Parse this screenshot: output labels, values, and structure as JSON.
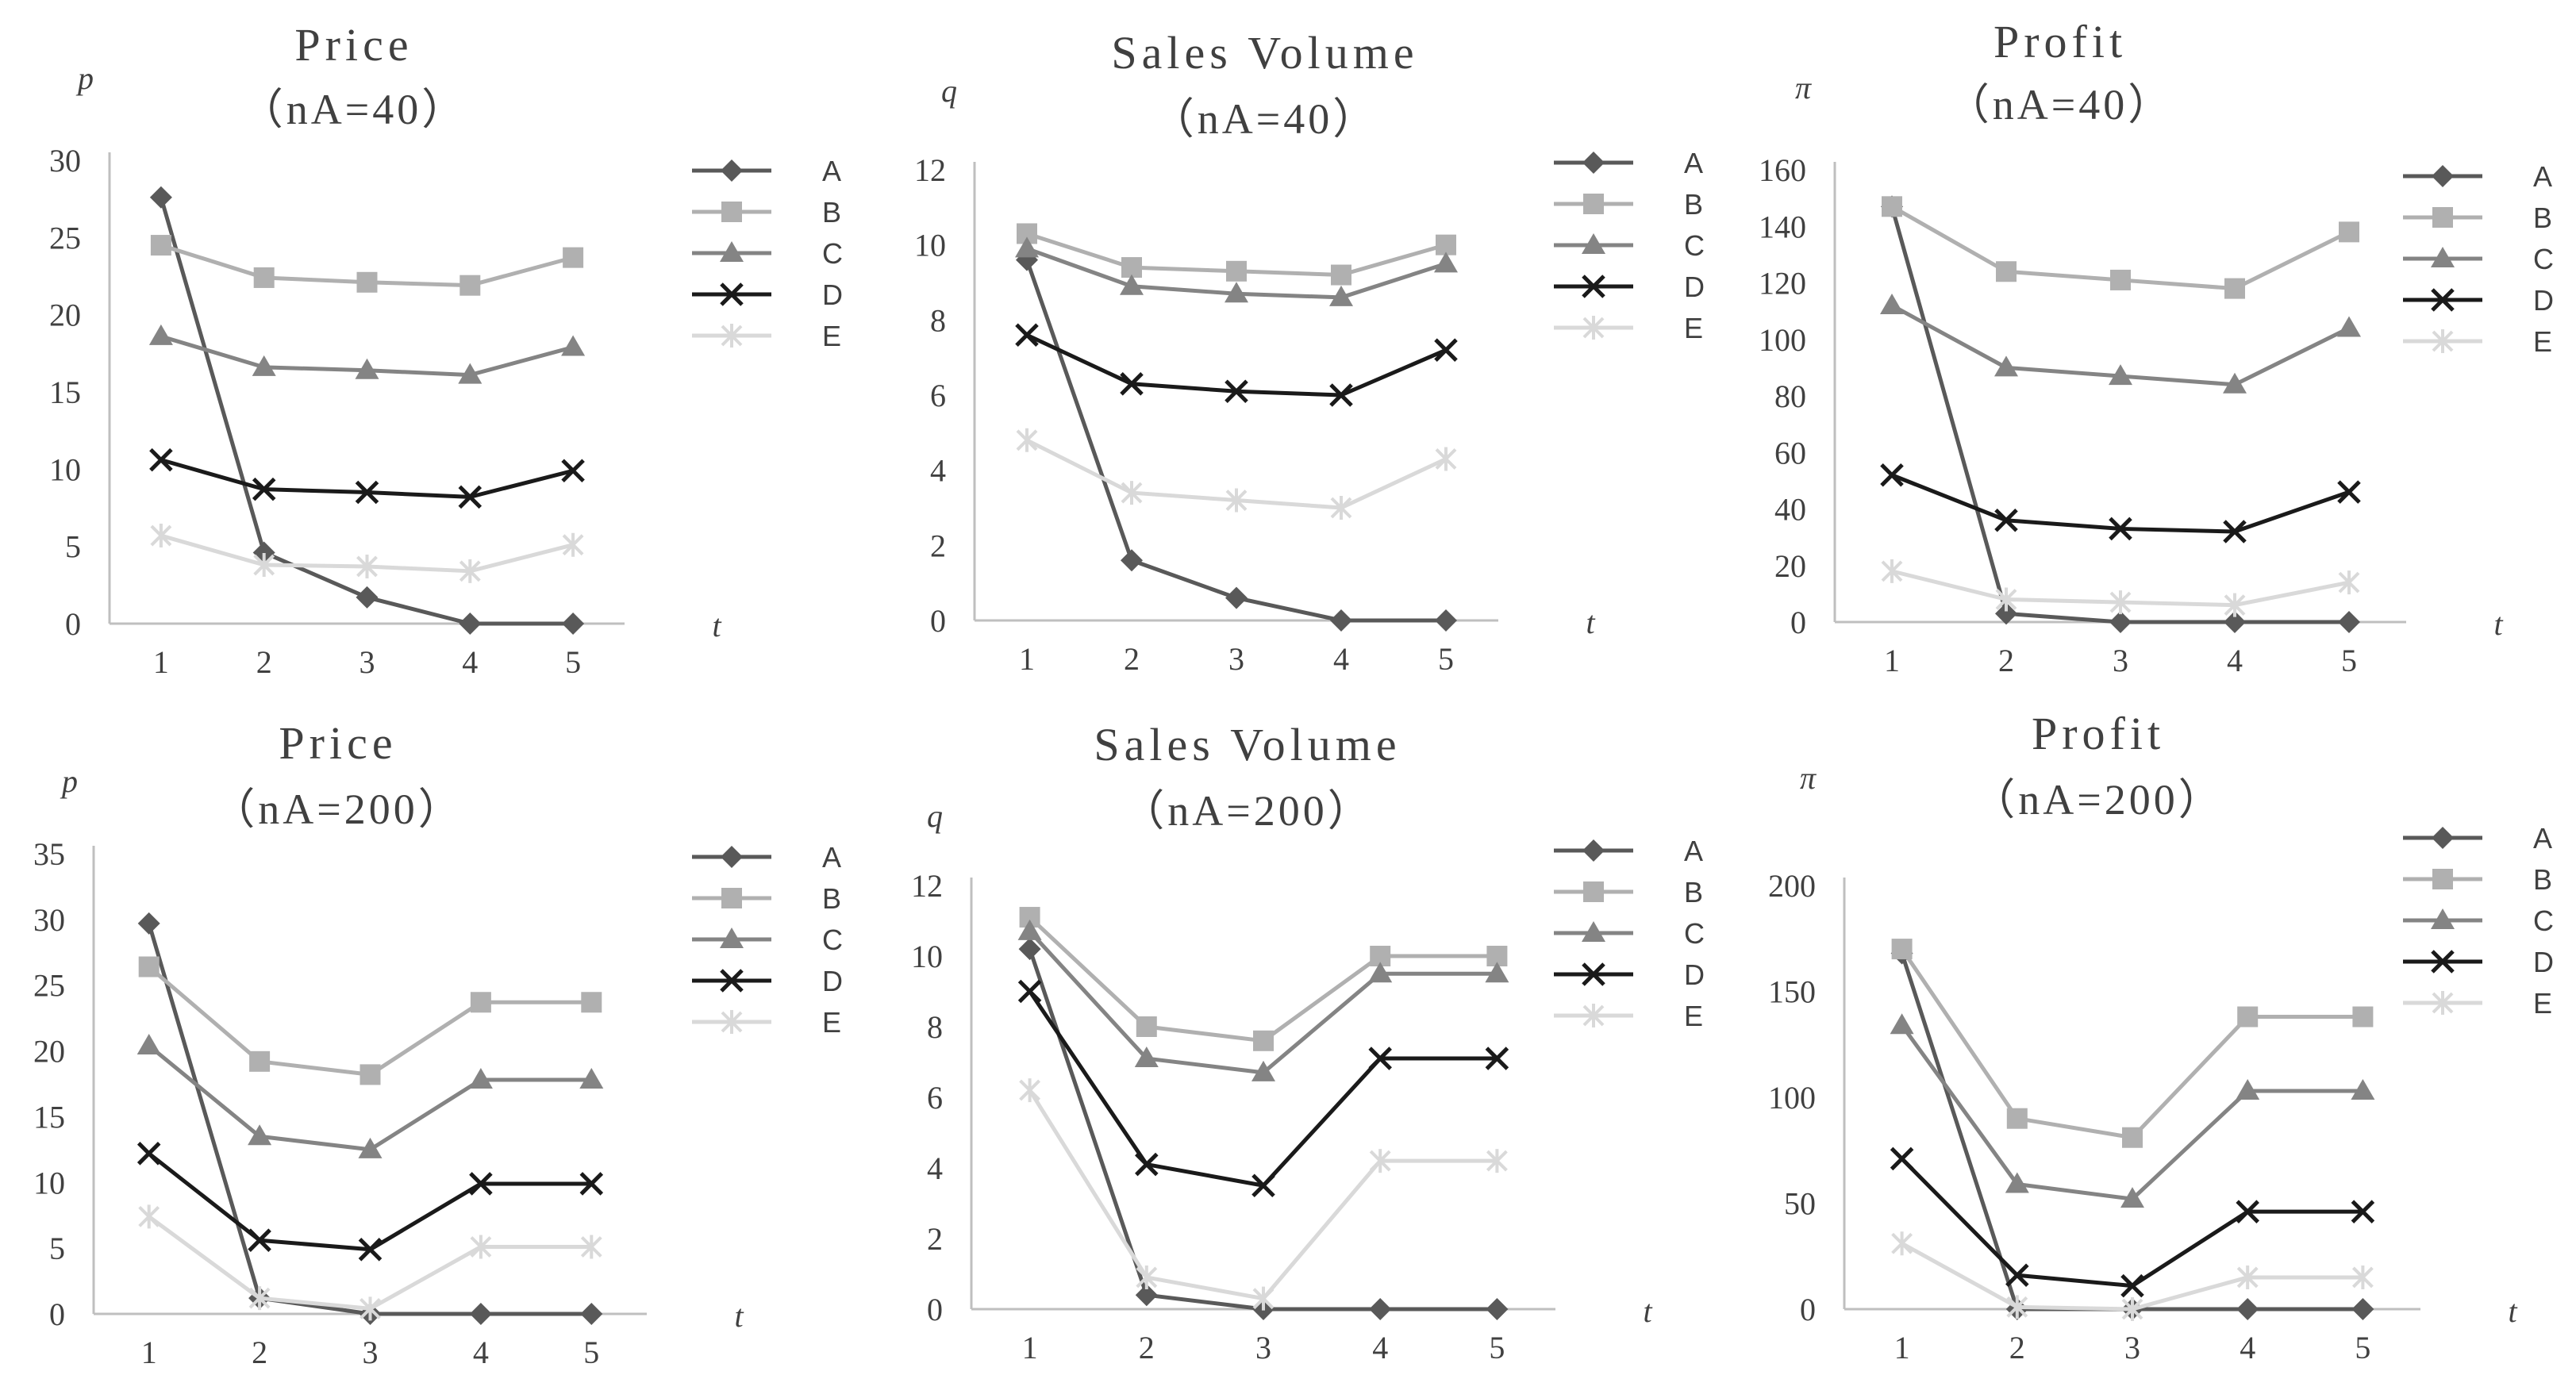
{
  "colors": {
    "A": "#595959",
    "B": "#b0b0b0",
    "C": "#848484",
    "D": "#1a1a1a",
    "E": "#d9d9d9",
    "axis": "#bfbfbf",
    "text": "#404040"
  },
  "chart_data": [
    {
      "type": "line",
      "title": "Price",
      "subtitle": "（nA=40）",
      "ylabel": "p",
      "xlabel": "t",
      "categories": [
        1,
        2,
        3,
        4,
        5
      ],
      "yticks": [
        0,
        5,
        10,
        15,
        20,
        25,
        30
      ],
      "ylim": [
        0,
        30
      ],
      "grid": false,
      "legend": "right",
      "series": [
        {
          "name": "A",
          "marker": "diamond",
          "values": [
            27.6,
            4.6,
            1.7,
            0,
            0
          ]
        },
        {
          "name": "B",
          "marker": "square",
          "values": [
            24.5,
            22.4,
            22.1,
            21.9,
            23.7
          ]
        },
        {
          "name": "C",
          "marker": "triangle",
          "values": [
            18.6,
            16.6,
            16.4,
            16.1,
            17.9
          ]
        },
        {
          "name": "D",
          "marker": "x",
          "values": [
            10.6,
            8.7,
            8.5,
            8.2,
            9.9
          ]
        },
        {
          "name": "E",
          "marker": "star",
          "values": [
            5.7,
            3.8,
            3.7,
            3.4,
            5.1
          ]
        }
      ]
    },
    {
      "type": "line",
      "title": "Sales Volume",
      "subtitle": "（nA=40）",
      "ylabel": "q",
      "xlabel": "t",
      "categories": [
        1,
        2,
        3,
        4,
        5
      ],
      "yticks": [
        0,
        2,
        4,
        6,
        8,
        10,
        12
      ],
      "ylim": [
        0,
        12
      ],
      "grid": false,
      "legend": "right",
      "series": [
        {
          "name": "A",
          "marker": "diamond",
          "values": [
            9.6,
            1.6,
            0.6,
            0,
            0
          ]
        },
        {
          "name": "B",
          "marker": "square",
          "values": [
            10.3,
            9.4,
            9.3,
            9.2,
            10.0
          ]
        },
        {
          "name": "C",
          "marker": "triangle",
          "values": [
            9.9,
            8.9,
            8.7,
            8.6,
            9.5
          ]
        },
        {
          "name": "D",
          "marker": "x",
          "values": [
            7.6,
            6.3,
            6.1,
            6.0,
            7.2
          ]
        },
        {
          "name": "E",
          "marker": "star",
          "values": [
            4.8,
            3.4,
            3.2,
            3.0,
            4.3
          ]
        }
      ]
    },
    {
      "type": "line",
      "title": "Profit",
      "subtitle": "（nA=40）",
      "ylabel": "π",
      "xlabel": "t",
      "categories": [
        1,
        2,
        3,
        4,
        5
      ],
      "yticks": [
        0,
        20,
        40,
        60,
        80,
        100,
        120,
        140,
        160
      ],
      "ylim": [
        0,
        160
      ],
      "grid": false,
      "legend": "right",
      "series": [
        {
          "name": "A",
          "marker": "diamond",
          "values": [
            147,
            3,
            0,
            0,
            0
          ]
        },
        {
          "name": "B",
          "marker": "square",
          "values": [
            147,
            124,
            121,
            118,
            138
          ]
        },
        {
          "name": "C",
          "marker": "triangle",
          "values": [
            112,
            90,
            87,
            84,
            104
          ]
        },
        {
          "name": "D",
          "marker": "x",
          "values": [
            52,
            36,
            33,
            32,
            46
          ]
        },
        {
          "name": "E",
          "marker": "star",
          "values": [
            18,
            8,
            7,
            6,
            14
          ]
        }
      ]
    },
    {
      "type": "line",
      "title": "Price",
      "subtitle": "（nA=200）",
      "ylabel": "p",
      "xlabel": "t",
      "categories": [
        1,
        2,
        3,
        4,
        5
      ],
      "yticks": [
        0,
        5,
        10,
        15,
        20,
        25,
        30,
        35
      ],
      "ylim": [
        0,
        35
      ],
      "grid": false,
      "legend": "right",
      "series": [
        {
          "name": "A",
          "marker": "diamond",
          "values": [
            29.7,
            1.2,
            0,
            0,
            0
          ]
        },
        {
          "name": "B",
          "marker": "square",
          "values": [
            26.4,
            19.2,
            18.2,
            23.7,
            23.7
          ]
        },
        {
          "name": "C",
          "marker": "triangle",
          "values": [
            20.4,
            13.5,
            12.5,
            17.8,
            17.8
          ]
        },
        {
          "name": "D",
          "marker": "x",
          "values": [
            12.2,
            5.6,
            4.9,
            9.9,
            9.9
          ]
        },
        {
          "name": "E",
          "marker": "star",
          "values": [
            7.4,
            1.2,
            0.4,
            5.1,
            5.1
          ]
        }
      ]
    },
    {
      "type": "line",
      "title": "Sales Volume",
      "subtitle": "（nA=200）",
      "ylabel": "q",
      "xlabel": "t",
      "categories": [
        1,
        2,
        3,
        4,
        5
      ],
      "yticks": [
        0,
        2,
        4,
        6,
        8,
        10,
        12
      ],
      "ylim": [
        0,
        12
      ],
      "grid": false,
      "legend": "right",
      "series": [
        {
          "name": "A",
          "marker": "diamond",
          "values": [
            10.2,
            0.4,
            0,
            0,
            0
          ]
        },
        {
          "name": "B",
          "marker": "square",
          "values": [
            11.1,
            8.0,
            7.6,
            10.0,
            10.0
          ]
        },
        {
          "name": "C",
          "marker": "triangle",
          "values": [
            10.7,
            7.1,
            6.7,
            9.5,
            9.5
          ]
        },
        {
          "name": "D",
          "marker": "x",
          "values": [
            9.0,
            4.1,
            3.5,
            7.1,
            7.1
          ]
        },
        {
          "name": "E",
          "marker": "star",
          "values": [
            6.2,
            0.9,
            0.3,
            4.2,
            4.2
          ]
        }
      ]
    },
    {
      "type": "line",
      "title": "Profit",
      "subtitle": "（nA=200）",
      "ylabel": "π",
      "xlabel": "t",
      "categories": [
        1,
        2,
        3,
        4,
        5
      ],
      "yticks": [
        0,
        50,
        100,
        150,
        200
      ],
      "ylim": [
        0,
        200
      ],
      "grid": false,
      "legend": "right",
      "series": [
        {
          "name": "A",
          "marker": "diamond",
          "values": [
            168,
            0,
            0,
            0,
            0
          ]
        },
        {
          "name": "B",
          "marker": "square",
          "values": [
            170,
            90,
            81,
            138,
            138
          ]
        },
        {
          "name": "C",
          "marker": "triangle",
          "values": [
            134,
            59,
            52,
            103,
            103
          ]
        },
        {
          "name": "D",
          "marker": "x",
          "values": [
            71,
            16,
            11,
            46,
            46
          ]
        },
        {
          "name": "E",
          "marker": "star",
          "values": [
            31,
            1,
            0,
            15,
            15
          ]
        }
      ]
    }
  ]
}
